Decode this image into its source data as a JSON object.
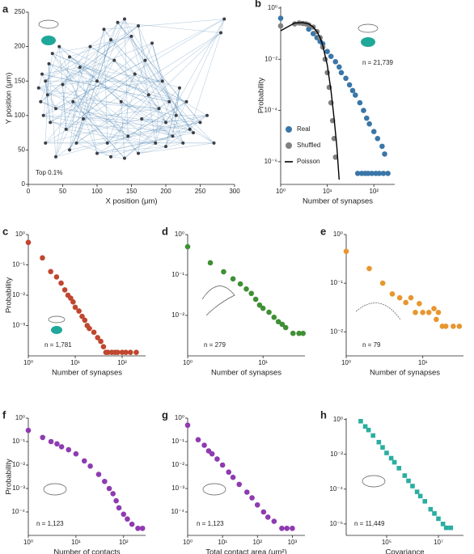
{
  "chart_data": [
    {
      "type": "scatter",
      "label": "a",
      "x_label": "X position (μm)",
      "y_label": "Y position (μm)",
      "annotation": "Top 0.1%",
      "xlim": [
        0,
        300
      ],
      "ylim": [
        0,
        250
      ],
      "xticks": [
        0,
        50,
        100,
        150,
        200,
        250,
        300
      ],
      "yticks": [
        0,
        50,
        100,
        150,
        200,
        250
      ],
      "edges": true,
      "series": [
        {
          "color": "#3d3f45",
          "x": [
            15,
            18,
            20,
            22,
            25,
            28,
            30,
            32,
            35,
            40,
            45,
            50,
            55,
            60,
            65,
            70,
            75,
            80,
            90,
            100,
            110,
            115,
            120,
            125,
            130,
            135,
            140,
            145,
            150,
            155,
            160,
            165,
            170,
            175,
            180,
            185,
            190,
            195,
            200,
            205,
            210,
            215,
            220,
            225,
            230,
            235,
            240,
            250,
            260,
            270,
            280,
            285,
            25,
            40,
            60,
            100,
            120,
            140,
            160,
            200
          ],
          "values": [
            140,
            120,
            160,
            100,
            150,
            130,
            175,
            90,
            190,
            110,
            200,
            145,
            80,
            185,
            120,
            60,
            170,
            95,
            200,
            150,
            225,
            60,
            210,
            180,
            235,
            120,
            240,
            70,
            215,
            160,
            230,
            95,
            180,
            130,
            205,
            60,
            110,
            150,
            90,
            120,
            70,
            100,
            140,
            60,
            120,
            80,
            75,
            90,
            100,
            60,
            220,
            240,
            60,
            40,
            50,
            45,
            40,
            38,
            45,
            55
          ]
        }
      ]
    },
    {
      "type": "scatter",
      "label": "b",
      "x_label": "Number of synapses",
      "y_label": "Probability",
      "annotation": "n = 21,739",
      "log_x": true,
      "log_y": true,
      "legend": "lower left",
      "xlim": [
        1,
        280
      ],
      "ylim": [
        1.3e-07,
        1.15
      ],
      "xticks": [
        {
          "value": 1,
          "label": "10⁰"
        },
        {
          "value": 10,
          "label": "10¹"
        },
        {
          "value": 100,
          "label": "10²"
        }
      ],
      "yticks": [
        {
          "value": 1,
          "label": "10⁰"
        },
        {
          "value": 0.01,
          "label": "10⁻²"
        },
        {
          "value": 0.0001,
          "label": "10⁻⁴"
        },
        {
          "value": 1e-06,
          "label": "10⁻⁶"
        }
      ],
      "series": [
        {
          "name": "Real",
          "color": "#3a76a8",
          "x": [
            1,
            4,
            5,
            6,
            7,
            8,
            10,
            12,
            15,
            18,
            20,
            25,
            30,
            35,
            40,
            50,
            60,
            70,
            80,
            100,
            120,
            150,
            170,
            45,
            55,
            65,
            75,
            90,
            110,
            130,
            160,
            200
          ],
          "values": [
            0.4,
            0.15,
            0.1,
            0.07,
            0.05,
            0.04,
            0.02,
            0.013,
            0.008,
            0.005,
            0.003,
            0.0018,
            0.001,
            0.0006,
            0.0004,
            0.0002,
            0.0001,
            5e-05,
            3e-05,
            1.5e-05,
            8e-06,
            4e-06,
            2e-06,
            3.5e-07,
            3.5e-07,
            3.5e-07,
            3.5e-07,
            3.5e-07,
            3.5e-07,
            3.5e-07,
            3.5e-07,
            3.5e-07
          ]
        },
        {
          "name": "Shuffled",
          "color": "#808080",
          "x": [
            1,
            2,
            2.5,
            3,
            3.5,
            4,
            5,
            6,
            7,
            8,
            9,
            10,
            11,
            12,
            13,
            14,
            15
          ],
          "values": [
            0.2,
            0.24,
            0.26,
            0.25,
            0.24,
            0.22,
            0.18,
            0.12,
            0.07,
            0.03,
            0.01,
            0.003,
            0.0008,
            0.0002,
            4e-05,
            8e-06,
            1.5e-06
          ]
        },
        {
          "name": "Poisson",
          "color": "#000000",
          "line": true,
          "x": [
            1,
            2,
            3,
            4,
            5,
            6,
            7,
            8,
            10,
            12,
            14,
            16,
            18
          ],
          "values": [
            0.13,
            0.26,
            0.27,
            0.24,
            0.18,
            0.12,
            0.07,
            0.035,
            0.006,
            0.0006,
            5e-05,
            4e-06,
            2e-07
          ]
        }
      ]
    },
    {
      "type": "scatter",
      "label": "c",
      "x_label": "Number of synapses",
      "y_label": "Probability",
      "annotation": "n = 1,781",
      "log_x": true,
      "log_y": true,
      "xlim": [
        1,
        316
      ],
      "ylim": [
        0.0001,
        1
      ],
      "xticks": [
        {
          "value": 1,
          "label": "10⁰"
        },
        {
          "value": 10,
          "label": "10¹"
        },
        {
          "value": 100,
          "label": "10²"
        }
      ],
      "yticks": [
        {
          "value": 1,
          "label": "10⁰"
        },
        {
          "value": 0.1,
          "label": "10⁻¹"
        },
        {
          "value": 0.01,
          "label": "10⁻²"
        },
        {
          "value": 0.001,
          "label": "10⁻³"
        }
      ],
      "series": [
        {
          "color": "#c0462f",
          "x": [
            1,
            2,
            3,
            4,
            5,
            6,
            7,
            8,
            9,
            10,
            12,
            14,
            16,
            18,
            20,
            25,
            30,
            35,
            40,
            45,
            50,
            60,
            70,
            80,
            100,
            120,
            150,
            200
          ],
          "values": [
            0.55,
            0.17,
            0.06,
            0.04,
            0.025,
            0.015,
            0.01,
            0.008,
            0.006,
            0.004,
            0.003,
            0.002,
            0.0015,
            0.001,
            0.0008,
            0.0006,
            0.0004,
            0.0003,
            0.0002,
            0.00013,
            0.00013,
            0.00013,
            0.00013,
            0.00013,
            0.00013,
            0.00013,
            0.00013,
            0.00013
          ]
        }
      ]
    },
    {
      "type": "scatter",
      "label": "d",
      "x_label": "Number of synapses",
      "annotation": "n = 279",
      "log_x": true,
      "log_y": true,
      "xlim": [
        1,
        36
      ],
      "ylim": [
        0.001,
        1
      ],
      "xticks": [
        {
          "value": 1,
          "label": "10⁰"
        },
        {
          "value": 10,
          "label": "10¹"
        }
      ],
      "yticks": [
        {
          "value": 1,
          "label": "10⁰"
        },
        {
          "value": 0.1,
          "label": "10⁻¹"
        },
        {
          "value": 0.01,
          "label": "10⁻²"
        }
      ],
      "series": [
        {
          "color": "#3f8f35",
          "x": [
            1,
            2,
            3,
            4,
            5,
            6,
            7,
            8,
            9,
            10,
            12,
            14,
            16,
            18,
            20,
            25,
            30,
            34
          ],
          "values": [
            0.5,
            0.2,
            0.12,
            0.08,
            0.06,
            0.045,
            0.035,
            0.025,
            0.018,
            0.015,
            0.012,
            0.009,
            0.007,
            0.006,
            0.005,
            0.0036,
            0.0036,
            0.0036
          ]
        }
      ]
    },
    {
      "type": "scatter",
      "label": "e",
      "x_label": "Number of synapses",
      "annotation": "n = 79",
      "log_x": true,
      "log_y": true,
      "xlim": [
        1,
        34
      ],
      "ylim": [
        0.0032,
        1
      ],
      "xticks": [
        {
          "value": 1,
          "label": "10⁰"
        },
        {
          "value": 10,
          "label": "10¹"
        }
      ],
      "yticks": [
        {
          "value": 1,
          "label": "10⁰"
        },
        {
          "value": 0.1,
          "label": "10⁻¹"
        },
        {
          "value": 0.01,
          "label": "10⁻²"
        }
      ],
      "series": [
        {
          "color": "#e8962e",
          "x": [
            1,
            2,
            3,
            4,
            5,
            6,
            7,
            8,
            9,
            10,
            12,
            14,
            15,
            16,
            18,
            20,
            25,
            30
          ],
          "values": [
            0.45,
            0.2,
            0.1,
            0.06,
            0.05,
            0.04,
            0.05,
            0.025,
            0.038,
            0.025,
            0.025,
            0.03,
            0.018,
            0.025,
            0.013,
            0.013,
            0.013,
            0.013
          ]
        }
      ]
    },
    {
      "type": "scatter",
      "label": "f",
      "x_label": "Number of contacts",
      "y_label": "Probability",
      "annotation": "n = 1,123",
      "log_x": true,
      "log_y": true,
      "xlim": [
        1,
        290
      ],
      "ylim": [
        1e-05,
        1
      ],
      "xticks": [
        {
          "value": 1,
          "label": "10⁰"
        },
        {
          "value": 10,
          "label": "10¹"
        },
        {
          "value": 100,
          "label": "10²"
        }
      ],
      "yticks": [
        {
          "value": 1,
          "label": "10⁰"
        },
        {
          "value": 0.1,
          "label": "10⁻¹"
        },
        {
          "value": 0.01,
          "label": "10⁻²"
        },
        {
          "value": 0.001,
          "label": "10⁻³"
        },
        {
          "value": 0.0001,
          "label": "10⁻⁴"
        }
      ],
      "series": [
        {
          "color": "#8e3bb0",
          "x": [
            1,
            2,
            3,
            4,
            5,
            7,
            10,
            15,
            20,
            30,
            40,
            50,
            60,
            70,
            80,
            100,
            120,
            150,
            200,
            250
          ],
          "values": [
            0.3,
            0.15,
            0.1,
            0.08,
            0.06,
            0.045,
            0.03,
            0.015,
            0.009,
            0.004,
            0.002,
            0.001,
            0.0006,
            0.0003,
            0.00015,
            8e-05,
            5e-05,
            3e-05,
            2e-05,
            2e-05
          ]
        }
      ]
    },
    {
      "type": "scatter",
      "label": "g",
      "x_label": "Total contact area (μm²)",
      "annotation": "n = 1,123",
      "log_x": true,
      "log_y": true,
      "xlim": [
        1,
        2300
      ],
      "ylim": [
        1e-05,
        1
      ],
      "xticks": [
        {
          "value": 1,
          "label": "10⁰"
        },
        {
          "value": 10,
          "label": "10¹"
        },
        {
          "value": 100,
          "label": "10²"
        },
        {
          "value": 1000,
          "label": "10³"
        }
      ],
      "yticks": [
        {
          "value": 1,
          "label": "10⁰"
        },
        {
          "value": 0.1,
          "label": "10⁻¹"
        },
        {
          "value": 0.01,
          "label": "10⁻²"
        },
        {
          "value": 0.001,
          "label": "10⁻³"
        },
        {
          "value": 0.0001,
          "label": "10⁻⁴"
        }
      ],
      "series": [
        {
          "color": "#8e3bb0",
          "x": [
            1,
            2,
            3,
            4,
            5,
            7,
            10,
            15,
            20,
            30,
            50,
            70,
            100,
            150,
            200,
            300,
            500,
            700,
            1000
          ],
          "values": [
            0.5,
            0.12,
            0.07,
            0.04,
            0.03,
            0.018,
            0.01,
            0.005,
            0.003,
            0.0015,
            0.0007,
            0.0004,
            0.0002,
            0.0001,
            6e-05,
            4e-05,
            2e-05,
            2e-05,
            2e-05
          ]
        }
      ]
    },
    {
      "type": "scatter",
      "label": "h",
      "x_label": "Covariance",
      "annotation": "n = 11,449",
      "log_x": true,
      "log_y": true,
      "marker": "square",
      "xlim": [
        2750,
        93000000
      ],
      "ylim": [
        2.2e-07,
        1.2
      ],
      "xticks": [
        {
          "value": 100000,
          "label": "10⁵"
        },
        {
          "value": 10000000,
          "label": "10⁷"
        }
      ],
      "yticks": [
        {
          "value": 1,
          "label": "10⁰"
        },
        {
          "value": 0.01,
          "label": "10⁻²"
        },
        {
          "value": 0.0001,
          "label": "10⁻⁴"
        },
        {
          "value": 1e-06,
          "label": "10⁻⁶"
        }
      ],
      "series": [
        {
          "color": "#2aaea0",
          "x": [
            10000,
            15000,
            20000,
            30000,
            50000,
            70000,
            100000,
            150000,
            200000,
            300000,
            500000,
            700000,
            1000000,
            1500000,
            2000000,
            3000000,
            5000000,
            7000000,
            10000000,
            15000000,
            20000000,
            30000000
          ],
          "values": [
            0.8,
            0.4,
            0.25,
            0.12,
            0.05,
            0.025,
            0.012,
            0.006,
            0.0035,
            0.0016,
            0.0006,
            0.0003,
            0.00015,
            7e-05,
            4e-05,
            2e-05,
            7e-06,
            4e-06,
            2e-06,
            1e-06,
            6e-07,
            6e-07
          ]
        }
      ]
    }
  ]
}
